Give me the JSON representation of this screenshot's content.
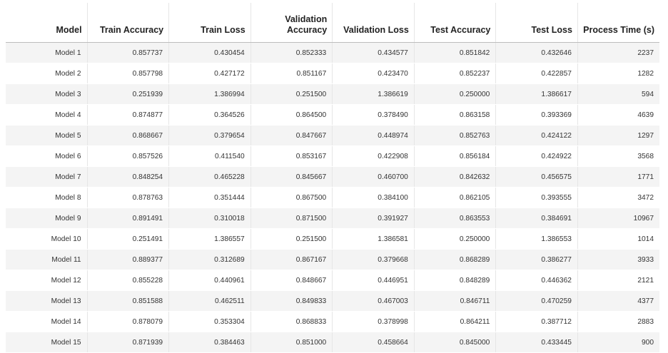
{
  "table": {
    "headers": [
      "Model",
      "Train Accuracy",
      "Train Loss",
      "Validation Accuracy",
      "Validation Loss",
      "Test Accuracy",
      "Test Loss",
      "Process Time (s)"
    ],
    "rows": [
      [
        "Model 1",
        "0.857737",
        "0.430454",
        "0.852333",
        "0.434577",
        "0.851842",
        "0.432646",
        "2237"
      ],
      [
        "Model 2",
        "0.857798",
        "0.427172",
        "0.851167",
        "0.423470",
        "0.852237",
        "0.422857",
        "1282"
      ],
      [
        "Model 3",
        "0.251939",
        "1.386994",
        "0.251500",
        "1.386619",
        "0.250000",
        "1.386617",
        "594"
      ],
      [
        "Model 4",
        "0.874877",
        "0.364526",
        "0.864500",
        "0.378490",
        "0.863158",
        "0.393369",
        "4639"
      ],
      [
        "Model 5",
        "0.868667",
        "0.379654",
        "0.847667",
        "0.448974",
        "0.852763",
        "0.424122",
        "1297"
      ],
      [
        "Model 6",
        "0.857526",
        "0.411540",
        "0.853167",
        "0.422908",
        "0.856184",
        "0.424922",
        "3568"
      ],
      [
        "Model 7",
        "0.848254",
        "0.465228",
        "0.845667",
        "0.460700",
        "0.842632",
        "0.456575",
        "1771"
      ],
      [
        "Model 8",
        "0.878763",
        "0.351444",
        "0.867500",
        "0.384100",
        "0.862105",
        "0.393555",
        "3472"
      ],
      [
        "Model 9",
        "0.891491",
        "0.310018",
        "0.871500",
        "0.391927",
        "0.863553",
        "0.384691",
        "10967"
      ],
      [
        "Model 10",
        "0.251491",
        "1.386557",
        "0.251500",
        "1.386581",
        "0.250000",
        "1.386553",
        "1014"
      ],
      [
        "Model 11",
        "0.889377",
        "0.312689",
        "0.867167",
        "0.379668",
        "0.868289",
        "0.386277",
        "3933"
      ],
      [
        "Model 12",
        "0.855228",
        "0.440961",
        "0.848667",
        "0.446951",
        "0.848289",
        "0.446362",
        "2121"
      ],
      [
        "Model 13",
        "0.851588",
        "0.462511",
        "0.849833",
        "0.467003",
        "0.846711",
        "0.470259",
        "4377"
      ],
      [
        "Model 14",
        "0.878079",
        "0.353304",
        "0.868833",
        "0.378998",
        "0.864211",
        "0.387712",
        "2883"
      ],
      [
        "Model 15",
        "0.871939",
        "0.384463",
        "0.851000",
        "0.458664",
        "0.845000",
        "0.433445",
        "900"
      ]
    ]
  }
}
